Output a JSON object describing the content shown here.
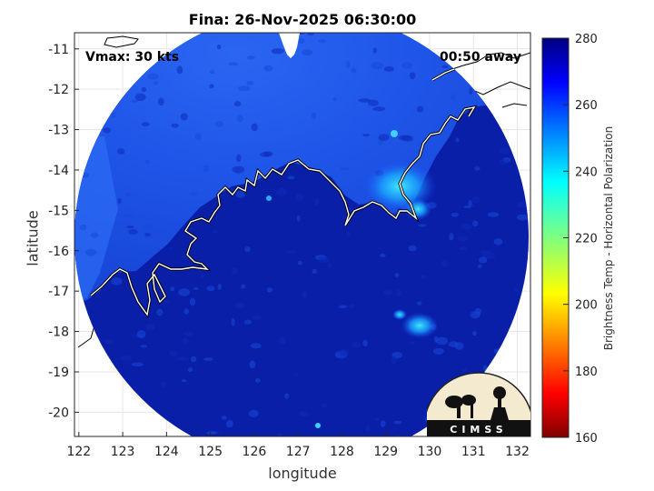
{
  "title": "Fina: 26-Nov-2025 06:30:00",
  "xlabel": "longitude",
  "ylabel": "latitude",
  "vmax_text": "Vmax: 30 kts",
  "time_away_text": "00:50 away",
  "colorbar": {
    "label": "Brightness Temp - Horizontal Polarization",
    "min": 160,
    "max": 280,
    "ticks": [
      "160",
      "180",
      "200",
      "220",
      "240",
      "260",
      "280"
    ],
    "colormap": "jet"
  },
  "logo_text": "CIMSS",
  "chart_data": {
    "type": "heatmap",
    "title": "Fina: 26-Nov-2025 06:30:00",
    "xlabel": "longitude",
    "ylabel": "latitude",
    "xlim": [
      121.9,
      132.3
    ],
    "ylim": [
      -20.6,
      -10.6
    ],
    "xticks": [
      "122",
      "123",
      "124",
      "125",
      "126",
      "127",
      "128",
      "129",
      "130",
      "131",
      "132"
    ],
    "yticks": [
      "-11",
      "-12",
      "-13",
      "-14",
      "-15",
      "-16",
      "-17",
      "-18",
      "-19",
      "-20"
    ],
    "grid": true,
    "swath_center": [
      127.2,
      -15.6
    ],
    "background_temp": 272,
    "features": [
      {
        "name": "land-warm-region",
        "lon": 128.5,
        "lat": -12.0,
        "temp": 262
      },
      {
        "name": "cool-patch-east",
        "lon": 129.4,
        "lat": -14.6,
        "temp": 238
      },
      {
        "name": "cool-patch-south",
        "lon": 129.6,
        "lat": -17.9,
        "temp": 252
      },
      {
        "name": "northwest-land",
        "lon": 122.8,
        "lat": -15.8,
        "temp": 255
      }
    ]
  },
  "colors": {
    "ocean": "#0a1fa8",
    "land": "#1c4fe6",
    "coast": "#ffffff",
    "outside_coast": "#000000"
  }
}
